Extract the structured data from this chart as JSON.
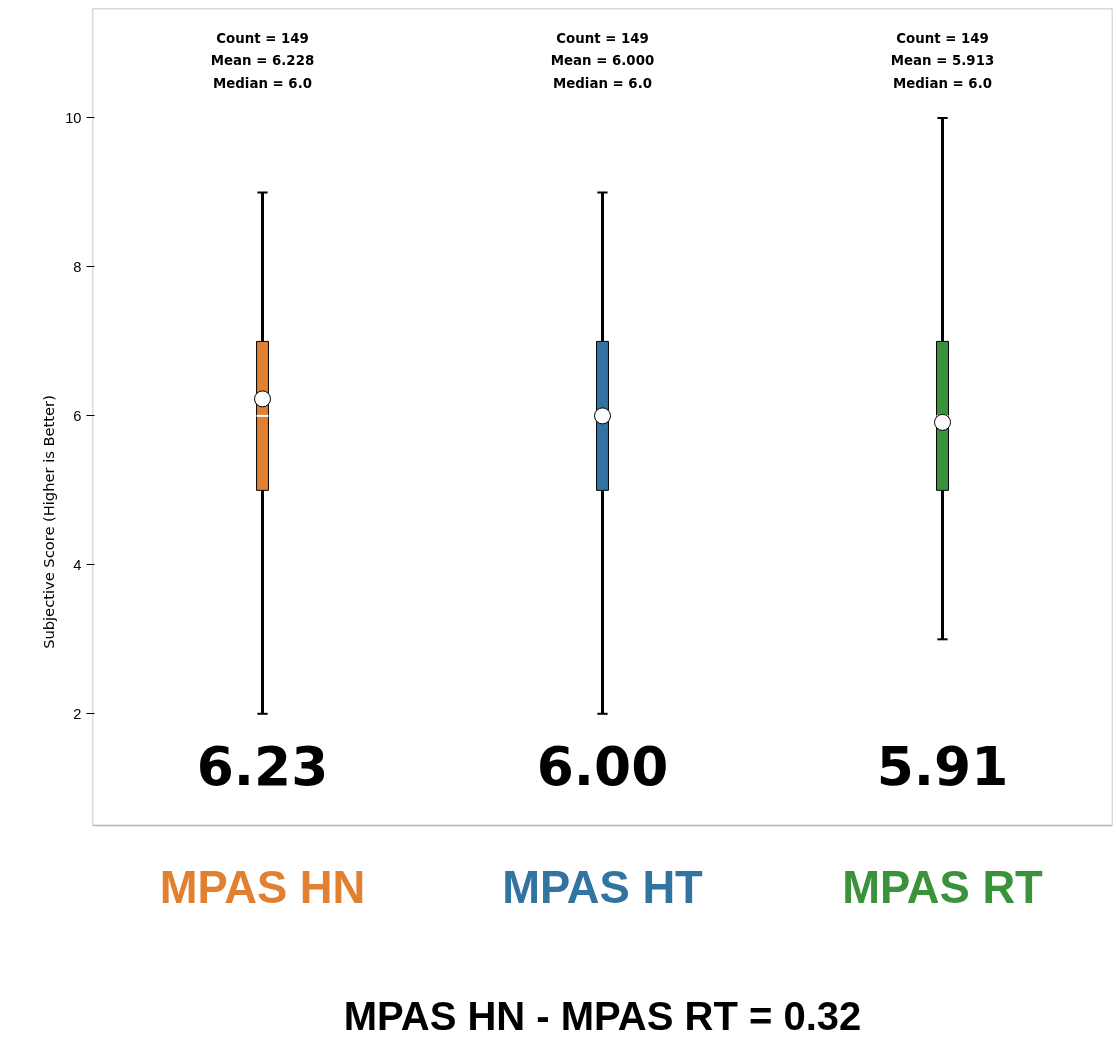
{
  "chart_data": {
    "type": "box",
    "ylabel": "Subjective Score (Higher is Better)",
    "categories": [
      "MPAS HN",
      "MPAS HT",
      "MPAS RT"
    ],
    "colors": [
      "#e08030",
      "#3274a1",
      "#3a923a"
    ],
    "boxes": [
      {
        "low": 2,
        "q1": 5,
        "median": 6,
        "q3": 7,
        "high": 9,
        "mean": 6.228
      },
      {
        "low": 2,
        "q1": 5,
        "median": 6,
        "q3": 7,
        "high": 9,
        "mean": 6.0
      },
      {
        "low": 3,
        "q1": 5,
        "median": 6,
        "q3": 7,
        "high": 10,
        "mean": 5.913
      }
    ],
    "ylim": [
      0.5,
      11.47
    ],
    "yticks": [
      2,
      4,
      6,
      8,
      10
    ],
    "grid": false,
    "annotations": [
      "Count = 149\nMean = 6.228\nMedian = 6.0",
      "Count = 149\nMean = 6.000\nMedian = 6.0",
      "Count = 149\nMean = 5.913\nMedian = 6.0",
      "6.23",
      "6.00",
      "5.91",
      "MPAS HN - MPAS RT = 0.32"
    ]
  }
}
